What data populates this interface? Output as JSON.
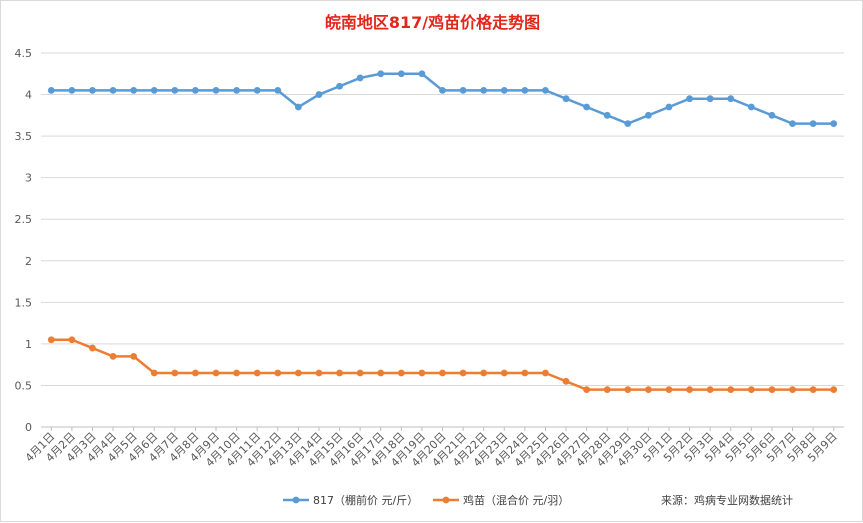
{
  "chart_data": {
    "type": "line",
    "title": "皖南地区817/鸡苗价格走势图",
    "categories": [
      "4月1日",
      "4月2日",
      "4月3日",
      "4月4日",
      "4月5日",
      "4月6日",
      "4月7日",
      "4月8日",
      "4月9日",
      "4月10日",
      "4月11日",
      "4月12日",
      "4月13日",
      "4月14日",
      "4月15日",
      "4月16日",
      "4月17日",
      "4月18日",
      "4月19日",
      "4月20日",
      "4月21日",
      "4月22日",
      "4月23日",
      "4月24日",
      "4月25日",
      "4月26日",
      "4月27日",
      "4月28日",
      "4月29日",
      "4月30日",
      "5月1日",
      "5月2日",
      "5月3日",
      "5月4日",
      "5月5日",
      "5月6日",
      "5月7日",
      "5月8日",
      "5月9日"
    ],
    "ylim": [
      0,
      4.5
    ],
    "yticks": [
      "0",
      "0.5",
      "1",
      "1.5",
      "2",
      "2.5",
      "3",
      "3.5",
      "4",
      "4.5"
    ],
    "grid": true,
    "legend_position": "bottom",
    "series": [
      {
        "name": "817（棚前价 元/斤）",
        "color": "#5b9bd5",
        "values": [
          4.05,
          4.05,
          4.05,
          4.05,
          4.05,
          4.05,
          4.05,
          4.05,
          4.05,
          4.05,
          4.05,
          4.05,
          3.85,
          4.0,
          4.1,
          4.2,
          4.25,
          4.25,
          4.25,
          4.05,
          4.05,
          4.05,
          4.05,
          4.05,
          4.05,
          3.95,
          3.85,
          3.75,
          3.65,
          3.75,
          3.85,
          3.95,
          3.95,
          3.95,
          3.85,
          3.75,
          3.65,
          3.65,
          3.65
        ]
      },
      {
        "name": "鸡苗（混合价 元/羽）",
        "color": "#ed7d31",
        "values": [
          1.05,
          1.05,
          0.95,
          0.85,
          0.85,
          0.65,
          0.65,
          0.65,
          0.65,
          0.65,
          0.65,
          0.65,
          0.65,
          0.65,
          0.65,
          0.65,
          0.65,
          0.65,
          0.65,
          0.65,
          0.65,
          0.65,
          0.65,
          0.65,
          0.65,
          0.55,
          0.45,
          0.45,
          0.45,
          0.45,
          0.45,
          0.45,
          0.45,
          0.45,
          0.45,
          0.45,
          0.45,
          0.45,
          0.45
        ]
      }
    ],
    "source": "来源：鸡病专业网数据统计"
  }
}
